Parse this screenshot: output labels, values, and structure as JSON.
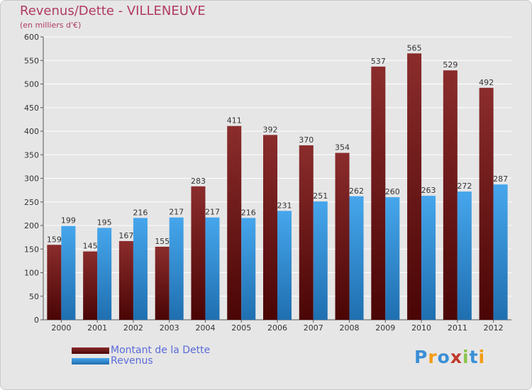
{
  "chart_data": {
    "type": "bar",
    "title": "Revenus/Dette - VILLENEUVE",
    "subtitle": "(en milliers d'€)",
    "xlabel": "",
    "ylabel": "",
    "ylim": [
      0,
      600
    ],
    "yticks": [
      0,
      50,
      100,
      150,
      200,
      250,
      300,
      350,
      400,
      450,
      500,
      550,
      600
    ],
    "categories": [
      "2000",
      "2001",
      "2002",
      "2003",
      "2004",
      "2005",
      "2006",
      "2007",
      "2008",
      "2009",
      "2010",
      "2011",
      "2012"
    ],
    "series": [
      {
        "name": "Montant de la Dette",
        "color": "#8b2323",
        "values": [
          159,
          145,
          167,
          155,
          283,
          411,
          392,
          370,
          354,
          537,
          565,
          529,
          492
        ]
      },
      {
        "name": "Revenus",
        "color": "#3f9de0",
        "values": [
          199,
          195,
          216,
          217,
          217,
          216,
          231,
          251,
          262,
          260,
          263,
          272,
          287
        ]
      }
    ],
    "grid": true,
    "legend_position": "bottom-left"
  },
  "logo": {
    "letters": [
      "P",
      "r",
      "o",
      "x",
      "i",
      "t",
      "i"
    ],
    "colors": [
      "#3a8fd6",
      "#f39c12",
      "#3a8fd6",
      "#c0392b",
      "#8bc34a",
      "#3a8fd6",
      "#f39c12"
    ]
  }
}
